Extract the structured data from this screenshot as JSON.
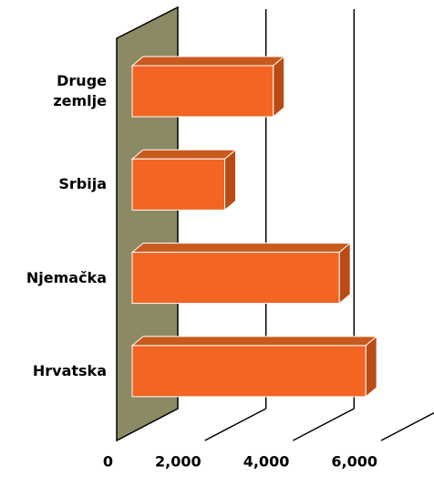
{
  "chart_data": {
    "type": "bar3d",
    "orientation": "horizontal",
    "categories": [
      "Druge zemlje",
      "Srbija",
      "Njemačka",
      "Hrvatska"
    ],
    "values": [
      3200,
      2100,
      4700,
      5300
    ],
    "color": "#f26522",
    "xlim": [
      0,
      6000
    ],
    "xticks": [
      0,
      {
        "value": 2000,
        "label": "2,000"
      },
      {
        "value": 4000,
        "label": "4,000"
      },
      {
        "value": 6000,
        "label": "6,000"
      }
    ],
    "grid": true
  }
}
